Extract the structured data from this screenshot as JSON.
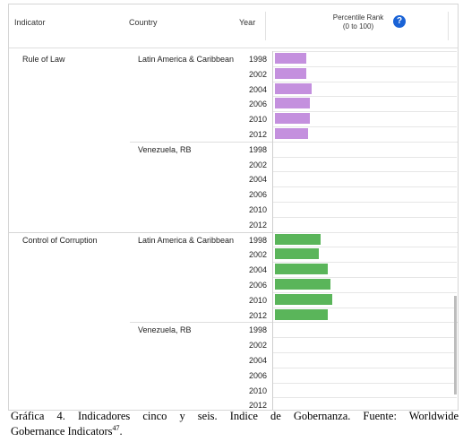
{
  "header": {
    "indicator": "Indicator",
    "country": "Country",
    "year": "Year",
    "rank_line1": "Percentile Rank",
    "rank_line2": "(0 to 100)",
    "help": "?"
  },
  "colors": {
    "rule_of_law": "#c490de",
    "control_of_corruption": "#5ab55a"
  },
  "chart_data": {
    "type": "bar",
    "orientation": "horizontal",
    "xlim": [
      0,
      100
    ],
    "years": [
      "1998",
      "2002",
      "2004",
      "2006",
      "2010",
      "2012"
    ],
    "groups": [
      {
        "indicator": "Rule of Law",
        "color": "#c490de",
        "rows": [
          {
            "country": "Latin America & Caribbean",
            "values": [
              18,
              18,
              21,
              20,
              20,
              19
            ]
          },
          {
            "country": "Venezuela, RB",
            "values": [
              0,
              0,
              0,
              0,
              0,
              0
            ]
          }
        ]
      },
      {
        "indicator": "Control of Corruption",
        "color": "#5ab55a",
        "rows": [
          {
            "country": "Latin America & Caribbean",
            "values": [
              26,
              25,
              30,
              32,
              33,
              30
            ]
          },
          {
            "country": "Venezuela, RB",
            "values": [
              0,
              0,
              0,
              0,
              0,
              0
            ]
          }
        ]
      }
    ]
  },
  "caption": {
    "line1": "Gráfica 4. Indicadores cinco y seis. Indice de Gobernanza. Fuente: Worldwide",
    "line2": "Gobernance Indicators",
    "note": "47",
    "end": "."
  }
}
